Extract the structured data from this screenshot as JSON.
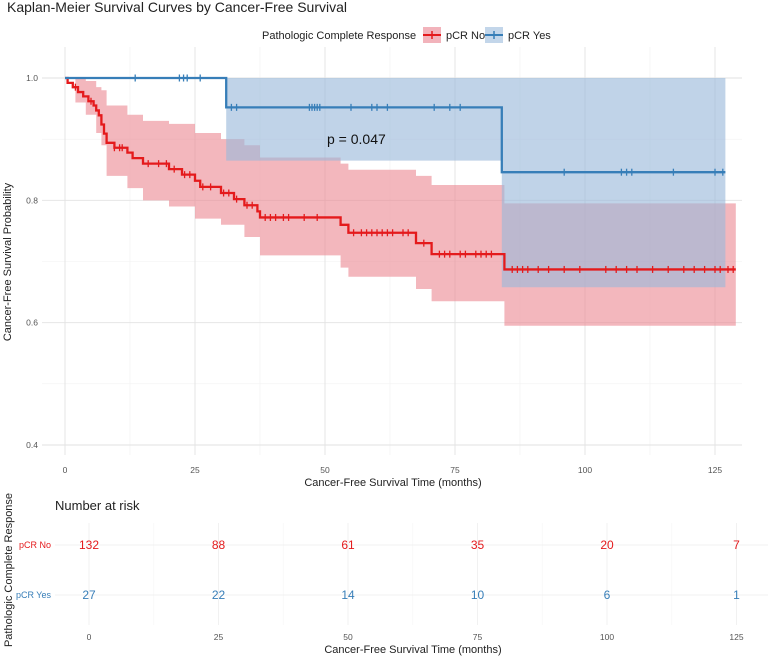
{
  "chart_data": {
    "type": "line",
    "subtype": "kaplan-meier",
    "title": "Kaplan-Meier Survival Curves by Cancer-Free Survival",
    "xlabel": "Cancer-Free Survival Time (months)",
    "ylabel": "Cancer-Free Survival Probability",
    "xlim": [
      0,
      130
    ],
    "ylim": [
      0.4,
      1.0
    ],
    "x_ticks": [
      0,
      25,
      50,
      75,
      100,
      125
    ],
    "y_ticks": [
      0.4,
      0.6,
      0.8,
      1.0
    ],
    "y_tick_labels": [
      "0.4",
      "0.6",
      "0.8",
      "1.0"
    ],
    "grid": true,
    "legend": {
      "title": "Pathologic Complete Response",
      "position": "top",
      "entries": [
        "pCR No",
        "pCR Yes"
      ]
    },
    "annotation": {
      "text": "p = 0.047",
      "x": 50,
      "y": 0.9
    },
    "series": [
      {
        "name": "pCR No",
        "color": "#e41a1c",
        "band_color": "#ec8a94",
        "steps": [
          [
            0,
            1.0
          ],
          [
            0.5,
            0.992
          ],
          [
            1.5,
            0.985
          ],
          [
            2.5,
            0.977
          ],
          [
            3.5,
            0.97
          ],
          [
            4.5,
            0.962
          ],
          [
            5.5,
            0.955
          ],
          [
            6,
            0.947
          ],
          [
            6.5,
            0.939
          ],
          [
            7,
            0.924
          ],
          [
            7.5,
            0.909
          ],
          [
            8,
            0.894
          ],
          [
            9.5,
            0.886
          ],
          [
            12,
            0.878
          ],
          [
            13,
            0.869
          ],
          [
            15,
            0.86
          ],
          [
            20,
            0.851
          ],
          [
            22.5,
            0.842
          ],
          [
            25,
            0.832
          ],
          [
            26,
            0.822
          ],
          [
            30,
            0.812
          ],
          [
            32.5,
            0.802
          ],
          [
            34.5,
            0.792
          ],
          [
            37,
            0.782
          ],
          [
            37.5,
            0.772
          ],
          [
            53,
            0.76
          ],
          [
            54.5,
            0.747
          ],
          [
            67.5,
            0.73
          ],
          [
            70.5,
            0.712
          ],
          [
            84.5,
            0.687
          ]
        ],
        "end": 129,
        "ci_steps": [
          [
            0,
            1.0,
            1.0
          ],
          [
            2,
            0.96,
            1.0
          ],
          [
            4,
            0.94,
            0.995
          ],
          [
            6,
            0.91,
            0.985
          ],
          [
            7,
            0.89,
            0.98
          ],
          [
            8,
            0.84,
            0.955
          ],
          [
            12,
            0.82,
            0.94
          ],
          [
            15,
            0.8,
            0.93
          ],
          [
            20,
            0.79,
            0.925
          ],
          [
            25,
            0.77,
            0.91
          ],
          [
            30,
            0.76,
            0.9
          ],
          [
            34.5,
            0.74,
            0.89
          ],
          [
            37.5,
            0.71,
            0.87
          ],
          [
            53,
            0.69,
            0.86
          ],
          [
            54.5,
            0.675,
            0.85
          ],
          [
            67.5,
            0.655,
            0.84
          ],
          [
            70.5,
            0.635,
            0.825
          ],
          [
            84.5,
            0.595,
            0.795
          ]
        ],
        "ci_end": 129,
        "censors": [
          2,
          5,
          9.5,
          10.5,
          11,
          16,
          18,
          19.5,
          21,
          23,
          24,
          26.5,
          28,
          30.5,
          31.5,
          33,
          35,
          36,
          38.5,
          39.5,
          40.5,
          42,
          43,
          46,
          48.5,
          55.5,
          57,
          58,
          59,
          60,
          61,
          62,
          63,
          65,
          66,
          69,
          72,
          73,
          74,
          76,
          77,
          79,
          80,
          81,
          82,
          86,
          87,
          88,
          89,
          91,
          93,
          96,
          99,
          104,
          106,
          108,
          110,
          113,
          116,
          119,
          121,
          123,
          125,
          126,
          127.5,
          128.5
        ]
      },
      {
        "name": "pCR Yes",
        "color": "#377eb8",
        "band_color": "#9ab8da",
        "steps": [
          [
            0,
            1.0
          ],
          [
            31,
            0.952
          ],
          [
            84,
            0.846
          ]
        ],
        "end": 127,
        "ci_steps": [
          [
            0,
            1.0,
            1.0
          ],
          [
            31,
            0.865,
            1.0
          ],
          [
            84,
            0.658,
            1.0
          ]
        ],
        "ci_end": 127,
        "censors": [
          13.5,
          22,
          22.8,
          23.5,
          26,
          32,
          33,
          47,
          47.5,
          48,
          48.5,
          49,
          55,
          59,
          60,
          62,
          71,
          74,
          76,
          96,
          107,
          108,
          109,
          117,
          125,
          126.5
        ]
      }
    ],
    "risk_table": {
      "title": "Number at risk",
      "ylabel": "Pathologic Complete Response",
      "xlabel": "Cancer-Free Survival Time (months)",
      "times": [
        0,
        25,
        50,
        75,
        100,
        125
      ],
      "x_tick_labels": [
        "0",
        "25",
        "50",
        "75",
        "100",
        "125"
      ],
      "rows": [
        {
          "label": "pCR No",
          "color": "#e41a1c",
          "values": [
            "132",
            "88",
            "61",
            "35",
            "20",
            "7"
          ]
        },
        {
          "label": "pCR Yes",
          "color": "#377eb8",
          "values": [
            "27",
            "22",
            "14",
            "10",
            "6",
            "1"
          ]
        }
      ]
    }
  }
}
